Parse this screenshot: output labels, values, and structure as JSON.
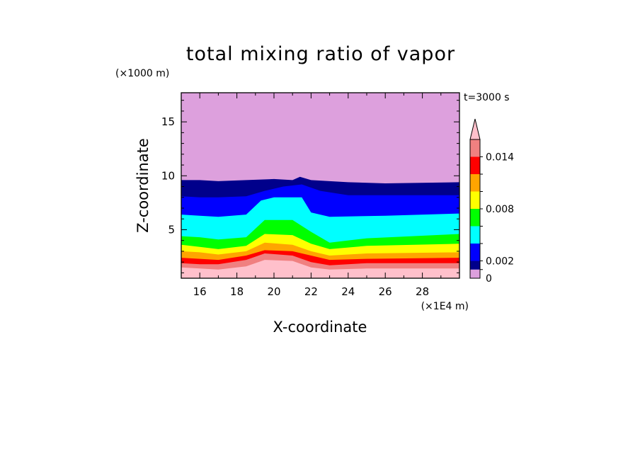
{
  "chart_data": {
    "type": "heatmap",
    "title": "total mixing ratio of vapor",
    "time_label": "t=3000 s",
    "xlabel": "X-coordinate",
    "ylabel": "Z-coordinate",
    "x_unit": "(×1E4 m)",
    "y_unit": "(×1000 m)",
    "xlim": [
      15,
      30
    ],
    "ylim": [
      0.5,
      17.7
    ],
    "x_ticks": [
      "16",
      "18",
      "20",
      "22",
      "24",
      "26",
      "28"
    ],
    "y_ticks": [
      "5",
      "10",
      "15"
    ],
    "colorbar": {
      "levels": [
        0,
        0.001,
        0.002,
        0.004,
        0.006,
        0.008,
        0.01,
        0.012,
        0.014,
        0.016
      ],
      "tick_labels": [
        "0",
        "0.002",
        "0.008",
        "0.014"
      ],
      "colors": [
        "#dda0dd",
        "#00008b",
        "#0000ff",
        "#00ffff",
        "#00ff00",
        "#ffff00",
        "#ffa500",
        "#ff0000",
        "#f08080",
        "#ffc0cb"
      ],
      "extend": "max"
    },
    "bands": [
      {
        "color": "#ffc0cb",
        "base": [
          [
            15,
            0.5
          ],
          [
            30,
            0.5
          ]
        ],
        "top": [
          [
            15,
            1.5
          ],
          [
            16,
            1.4
          ],
          [
            17,
            1.3
          ],
          [
            18.5,
            1.6
          ],
          [
            19.5,
            2.2
          ],
          [
            21,
            2.1
          ],
          [
            22,
            1.5
          ],
          [
            23,
            1.3
          ],
          [
            25,
            1.4
          ],
          [
            30,
            1.4
          ]
        ]
      },
      {
        "color": "#f08080",
        "top": [
          [
            15,
            1.9
          ],
          [
            16,
            1.8
          ],
          [
            17,
            1.8
          ],
          [
            18.5,
            2.2
          ],
          [
            19.5,
            2.8
          ],
          [
            21,
            2.6
          ],
          [
            22,
            2.0
          ],
          [
            23,
            1.7
          ],
          [
            25,
            1.9
          ],
          [
            30,
            1.9
          ]
        ]
      },
      {
        "color": "#ff0000",
        "top": [
          [
            15,
            2.4
          ],
          [
            16,
            2.3
          ],
          [
            17,
            2.2
          ],
          [
            18.5,
            2.6
          ],
          [
            19.5,
            3.1
          ],
          [
            21,
            3.0
          ],
          [
            22,
            2.6
          ],
          [
            23,
            2.2
          ],
          [
            25,
            2.3
          ],
          [
            30,
            2.4
          ]
        ]
      },
      {
        "color": "#ffa500",
        "top": [
          [
            15,
            3.0
          ],
          [
            16,
            2.9
          ],
          [
            17,
            2.7
          ],
          [
            18.5,
            3.0
          ],
          [
            19.5,
            3.8
          ],
          [
            21,
            3.6
          ],
          [
            22,
            3.0
          ],
          [
            23,
            2.6
          ],
          [
            25,
            2.8
          ],
          [
            30,
            2.9
          ]
        ]
      },
      {
        "color": "#ffff00",
        "top": [
          [
            15,
            3.6
          ],
          [
            16,
            3.4
          ],
          [
            17,
            3.2
          ],
          [
            18.5,
            3.5
          ],
          [
            19.5,
            4.6
          ],
          [
            21,
            4.5
          ],
          [
            22,
            3.7
          ],
          [
            23,
            3.2
          ],
          [
            25,
            3.5
          ],
          [
            30,
            3.7
          ]
        ]
      },
      {
        "color": "#00ff00",
        "top": [
          [
            15,
            4.4
          ],
          [
            16,
            4.3
          ],
          [
            17,
            4.1
          ],
          [
            18.5,
            4.3
          ],
          [
            19.5,
            5.9
          ],
          [
            21,
            5.9
          ],
          [
            22,
            4.8
          ],
          [
            23,
            3.8
          ],
          [
            25,
            4.2
          ],
          [
            30,
            4.6
          ]
        ]
      },
      {
        "color": "#00ffff",
        "top": [
          [
            15,
            6.4
          ],
          [
            16,
            6.3
          ],
          [
            17,
            6.2
          ],
          [
            18.5,
            6.4
          ],
          [
            19.3,
            7.7
          ],
          [
            20,
            8.0
          ],
          [
            21.5,
            8.0
          ],
          [
            22,
            6.6
          ],
          [
            23,
            6.2
          ],
          [
            26,
            6.3
          ],
          [
            30,
            6.5
          ]
        ]
      },
      {
        "color": "#0000ff",
        "top": [
          [
            15,
            8.1
          ],
          [
            16,
            8.0
          ],
          [
            17,
            8.0
          ],
          [
            18.5,
            8.1
          ],
          [
            19.5,
            8.6
          ],
          [
            20.5,
            9.0
          ],
          [
            21.5,
            9.2
          ],
          [
            22.5,
            8.6
          ],
          [
            24,
            8.2
          ],
          [
            30,
            8.2
          ]
        ]
      },
      {
        "color": "#00008b",
        "top": [
          [
            15,
            9.6
          ],
          [
            16,
            9.6
          ],
          [
            17,
            9.5
          ],
          [
            18.5,
            9.6
          ],
          [
            20,
            9.7
          ],
          [
            21,
            9.6
          ],
          [
            21.4,
            9.9
          ],
          [
            22,
            9.6
          ],
          [
            24,
            9.4
          ],
          [
            26,
            9.3
          ],
          [
            30,
            9.4
          ]
        ]
      },
      {
        "color": "#dda0dd",
        "top": [
          [
            15,
            17.7
          ],
          [
            30,
            17.7
          ]
        ]
      }
    ]
  }
}
